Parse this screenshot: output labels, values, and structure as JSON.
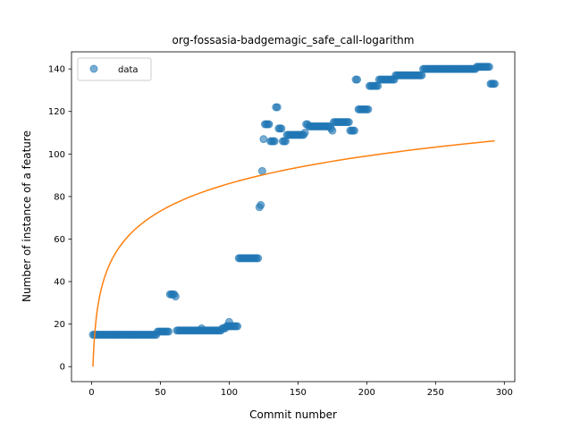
{
  "chart_data": {
    "type": "scatter",
    "title": "org-fossasia-badgemagic_safe_call-logarithm",
    "xlabel": "Commit number",
    "ylabel": "Number of instance of a feature",
    "xlim": [
      -14.6,
      307.6
    ],
    "ylim": [
      -7.05,
      148.05
    ],
    "xticks": [
      0,
      50,
      100,
      150,
      200,
      250,
      300
    ],
    "yticks": [
      0,
      20,
      40,
      60,
      80,
      100,
      120,
      140
    ],
    "grid": false,
    "legend": {
      "position": "top-left",
      "entries": [
        "data"
      ]
    },
    "colors": {
      "data": "#1f77b4",
      "fit": "#ff7f0e"
    },
    "series": [
      {
        "name": "data",
        "kind": "scatter",
        "segments": [
          {
            "x_start": 1,
            "x_end": 47,
            "y": 15
          },
          {
            "x_start": 48,
            "x_end": 56,
            "y": 16.5
          },
          {
            "x_start": 57,
            "x_end": 60,
            "y": 34
          },
          {
            "x": 61,
            "y": 33
          },
          {
            "x_start": 62,
            "x_end": 94,
            "y": 17
          },
          {
            "x": 80,
            "y": 18
          },
          {
            "x_start": 95,
            "x_end": 97,
            "y": 18
          },
          {
            "x": 100,
            "y": 21
          },
          {
            "x_start": 98,
            "x_end": 106,
            "y": 19
          },
          {
            "x_start": 107,
            "x_end": 121,
            "y": 51
          },
          {
            "x": 122,
            "y": 75
          },
          {
            "x": 123,
            "y": 76
          },
          {
            "x": 124,
            "y": 92
          },
          {
            "x": 125,
            "y": 107
          },
          {
            "x_start": 126,
            "x_end": 129,
            "y": 114
          },
          {
            "x_start": 130,
            "x_end": 133,
            "y": 106
          },
          {
            "x_start": 134,
            "x_end": 135,
            "y": 122
          },
          {
            "x_start": 136,
            "x_end": 138,
            "y": 112
          },
          {
            "x_start": 139,
            "x_end": 141,
            "y": 106
          },
          {
            "x_start": 142,
            "x_end": 154,
            "y": 109
          },
          {
            "x": 155,
            "y": 110
          },
          {
            "x_start": 156,
            "x_end": 157,
            "y": 114
          },
          {
            "x_start": 158,
            "x_end": 173,
            "y": 113
          },
          {
            "x": 174,
            "y": 112
          },
          {
            "x": 175,
            "y": 111
          },
          {
            "x_start": 176,
            "x_end": 187,
            "y": 115
          },
          {
            "x_start": 188,
            "x_end": 191,
            "y": 111
          },
          {
            "x_start": 192,
            "x_end": 193,
            "y": 135
          },
          {
            "x_start": 194,
            "x_end": 201,
            "y": 121
          },
          {
            "x_start": 202,
            "x_end": 208,
            "y": 132
          },
          {
            "x_start": 209,
            "x_end": 220,
            "y": 135
          },
          {
            "x_start": 221,
            "x_end": 240,
            "y": 137
          },
          {
            "x_start": 241,
            "x_end": 279,
            "y": 140
          },
          {
            "x_start": 280,
            "x_end": 289,
            "y": 141
          },
          {
            "x_start": 290,
            "x_end": 293,
            "y": 133
          }
        ]
      },
      {
        "name": "fit",
        "kind": "line",
        "x_range": [
          1,
          293
        ],
        "y_start": 0,
        "y_end": 106.2
      }
    ]
  }
}
